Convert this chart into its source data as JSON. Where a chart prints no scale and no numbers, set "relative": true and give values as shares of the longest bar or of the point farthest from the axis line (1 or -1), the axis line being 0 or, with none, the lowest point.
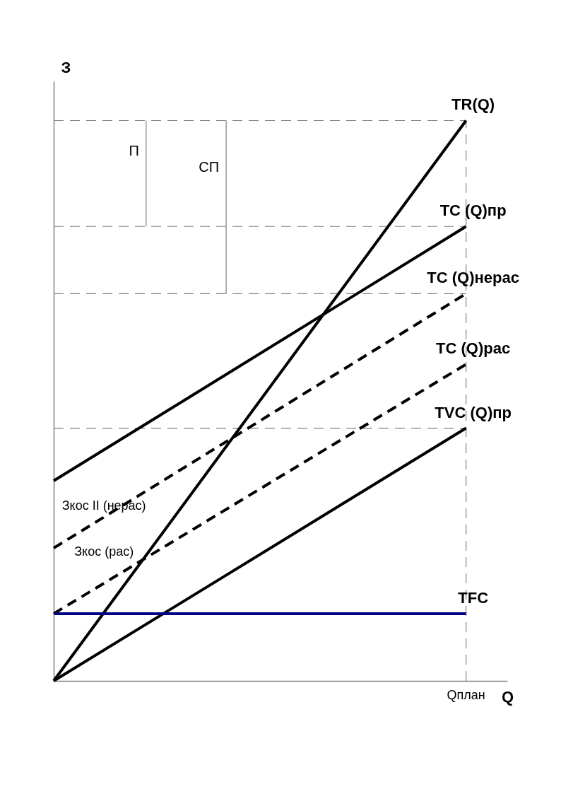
{
  "chart_data": {
    "type": "line",
    "relative": true,
    "ylabel": "З",
    "xlabel": "Q",
    "categories": [
      null,
      null
    ],
    "series": [
      {
        "name": "TR(Q)",
        "color": "#000000",
        "values": [
          0,
          1
        ]
      },
      {
        "name": "TC (Q)пр",
        "color": "#000000",
        "values": [
          0.357,
          0.811
        ]
      },
      {
        "name": "TC (Q)нерас",
        "color": "#000000",
        "values": [
          0.237,
          0.691
        ],
        "line_style": "dashed"
      },
      {
        "name": "TC (Q)рас",
        "color": "#000000",
        "values": [
          0.12,
          0.565
        ],
        "line_style": "dashed"
      },
      {
        "name": "TVC (Q)пр",
        "color": "#000000",
        "values": [
          0,
          0.451
        ]
      },
      {
        "name": "TFC",
        "color": "#000080",
        "values": [
          0.12,
          0.12
        ]
      }
    ],
    "ref_lines": [
      {
        "axis": "y",
        "value": 1,
        "color": "#808080",
        "line_style": "dashed"
      },
      {
        "axis": "y",
        "value": 0.811,
        "color": "#808080",
        "line_style": "dashed"
      },
      {
        "axis": "y",
        "value": 0.691,
        "color": "#808080",
        "line_style": "dashed"
      },
      {
        "axis": "y",
        "value": 0.451,
        "color": "#808080",
        "line_style": "dashed"
      },
      {
        "axis": "x",
        "label": "Qплан",
        "color": "#808080",
        "line_style": "dashed"
      }
    ],
    "annotations": [
      "Зкос II (нерас)",
      "Зкос (рас)",
      "П",
      "СП"
    ],
    "marker": "none",
    "line_style": "solid",
    "grid": false
  }
}
